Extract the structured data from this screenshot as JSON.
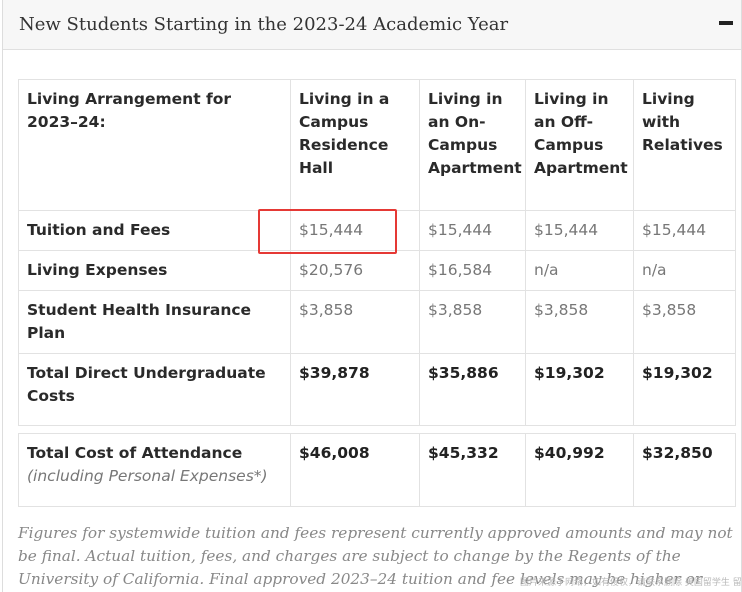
{
  "header": {
    "title": "New Students Starting in the 2023-24 Academic Year",
    "collapse_icon": "minus-icon"
  },
  "table": {
    "columns": [
      "Living Arrangement for 2023–24:",
      "Living in a Campus Residence Hall",
      "Living in an On-Campus Apartment",
      "Living in an Off-Campus Apartment",
      "Living with Relatives"
    ],
    "rows": [
      {
        "label": "Tuition and Fees",
        "values": [
          "$15,444",
          "$15,444",
          "$15,444",
          "$15,444"
        ]
      },
      {
        "label": "Living Expenses",
        "values": [
          "$20,576",
          "$16,584",
          "n/a",
          "n/a"
        ]
      },
      {
        "label": "Student Health Insurance Plan",
        "values": [
          "$3,858",
          "$3,858",
          "$3,858",
          "$3,858"
        ]
      },
      {
        "label": "Total Direct Undergraduate Costs",
        "values": [
          "$39,878",
          "$35,886",
          "$19,302",
          "$19,302"
        ]
      }
    ]
  },
  "total": {
    "label": "Total Cost of Attendance",
    "note": "(including Personal Expenses*)",
    "values": [
      "$46,008",
      "$45,332",
      "$40,992",
      "$32,850"
    ]
  },
  "footnote": "Figures for systemwide tuition and fees represent currently approved amounts and may not be final. Actual tuition, fees, and charges are subject to change by the Regents of the University of California. Final approved 2023–24 tuition and fee levels may be higher or lower than the amounts reported here.",
  "watermark": "图片来源于网络，如有侵权，请联系删除 美国留学生 留学圈",
  "colors": {
    "highlight": "#e53935",
    "border": "#e2e2e2"
  }
}
